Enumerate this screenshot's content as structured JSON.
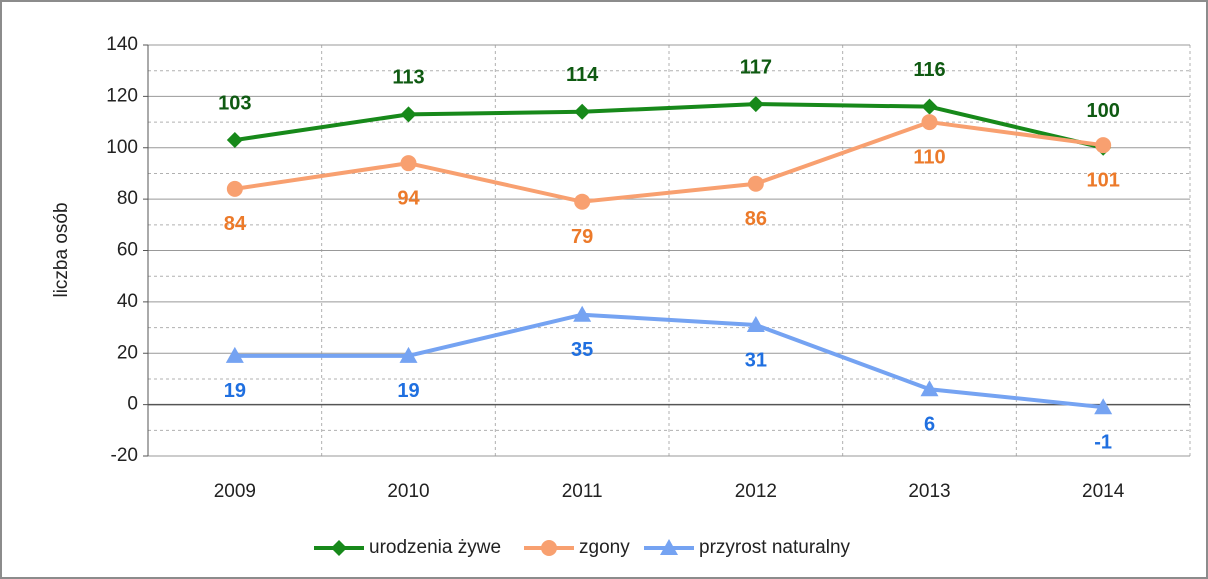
{
  "chart_data": {
    "type": "line",
    "y_label": "liczba osób",
    "categories": [
      "2009",
      "2010",
      "2011",
      "2012",
      "2013",
      "2014"
    ],
    "series": [
      {
        "name": "urodzenia żywe",
        "color": "#17891a",
        "label_color": "#0f5a12",
        "marker": "diamond",
        "label_position": "above",
        "values": [
          103,
          113,
          114,
          117,
          116,
          100
        ]
      },
      {
        "name": "zgony",
        "color": "#f8a070",
        "label_color": "#ec7a2a",
        "marker": "circle",
        "label_position": "below",
        "values": [
          84,
          94,
          79,
          86,
          110,
          101
        ]
      },
      {
        "name": "przyrost naturalny",
        "color": "#75a3f2",
        "label_color": "#1f6fe0",
        "marker": "triangle",
        "label_position": "below",
        "values": [
          19,
          19,
          35,
          31,
          6,
          -1
        ]
      }
    ],
    "ylim": [
      -20,
      140
    ],
    "yticks": [
      -20,
      0,
      20,
      40,
      60,
      80,
      100,
      120,
      140
    ],
    "grid": true,
    "legend": "bottom"
  }
}
